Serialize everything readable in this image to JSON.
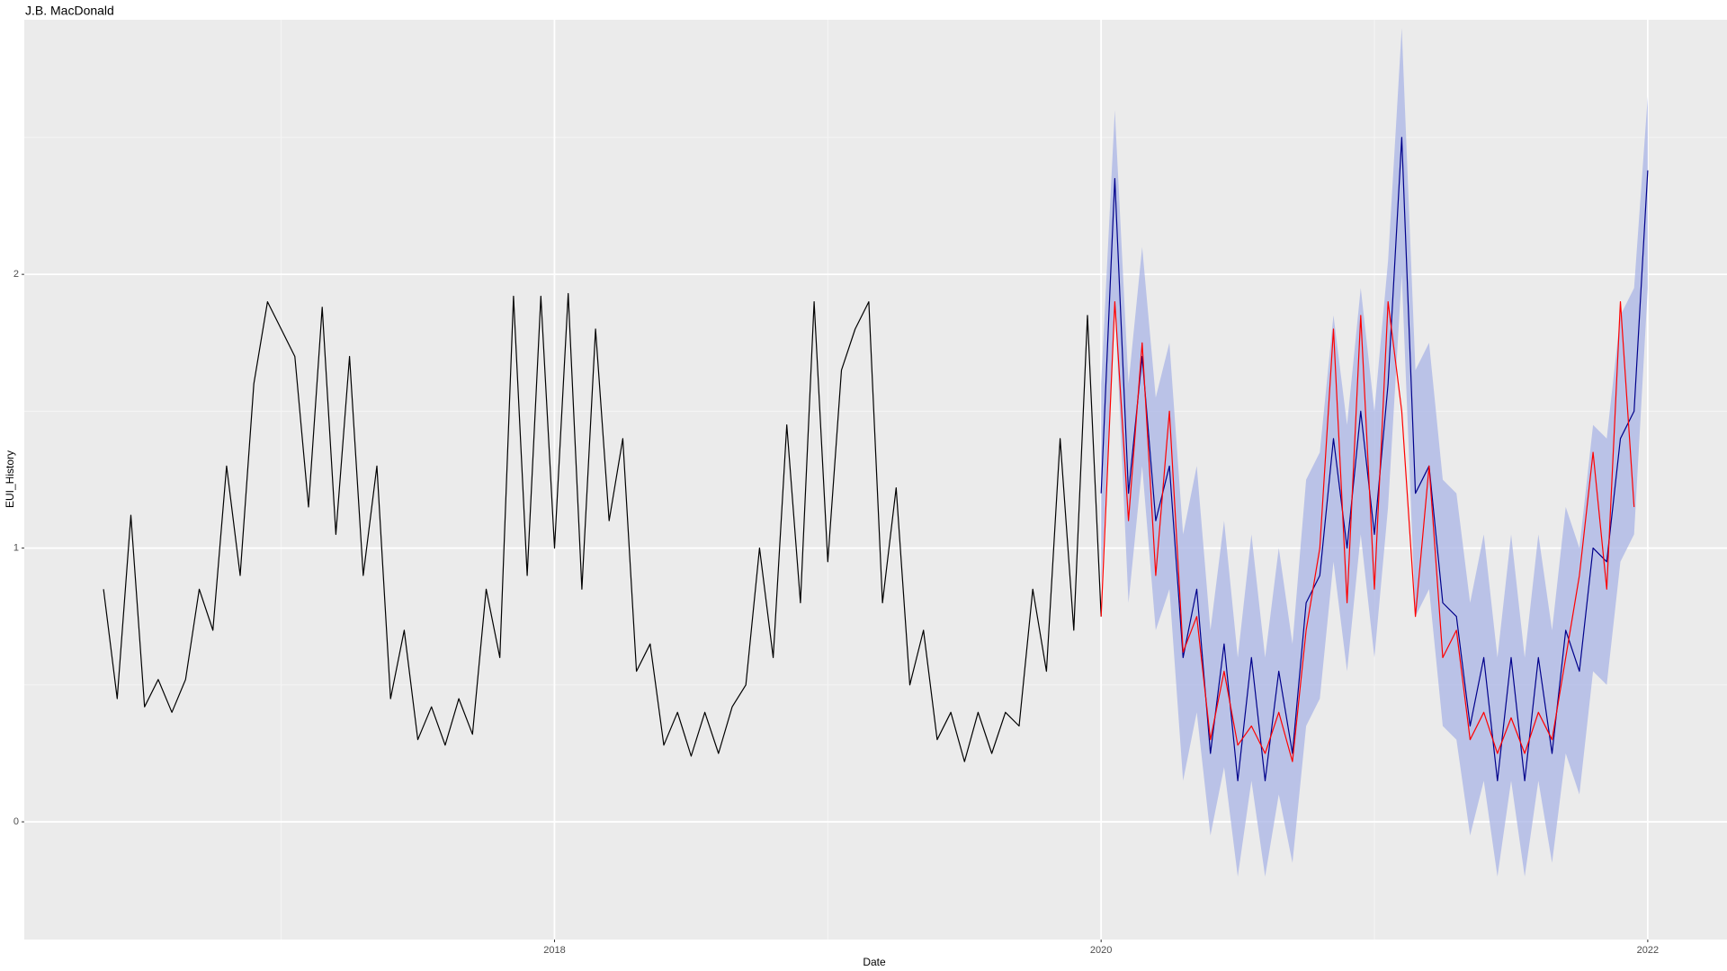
{
  "chart_data": {
    "type": "line",
    "title": "J.B. MacDonald",
    "xlabel": "Date",
    "ylabel": "EUI_History",
    "xlim": [
      2016.06,
      2022.29
    ],
    "ylim": [
      -0.43,
      2.93
    ],
    "xticks": [
      2018,
      2020,
      2022
    ],
    "yticks": [
      0,
      1,
      2
    ],
    "xminor": [
      2017,
      2019,
      2021
    ],
    "yminor": [
      0.5,
      1.5,
      2.5
    ],
    "grid": true,
    "series": [
      {
        "color": "#000000",
        "x": [
          2016.35,
          2016.4,
          2016.45,
          2016.5,
          2016.55,
          2016.6,
          2016.65,
          2016.7,
          2016.75,
          2016.8,
          2016.85,
          2016.9,
          2016.95,
          2017.0,
          2017.05,
          2017.1,
          2017.15,
          2017.2,
          2017.25,
          2017.3,
          2017.35,
          2017.4,
          2017.45,
          2017.5,
          2017.55,
          2017.6,
          2017.65,
          2017.7,
          2017.75,
          2017.8,
          2017.85,
          2017.9,
          2017.95,
          2018.0,
          2018.05,
          2018.1,
          2018.15,
          2018.2,
          2018.25,
          2018.3,
          2018.35,
          2018.4,
          2018.45,
          2018.5,
          2018.55,
          2018.6,
          2018.65,
          2018.7,
          2018.75,
          2018.8,
          2018.85,
          2018.9,
          2018.95,
          2019.0,
          2019.05,
          2019.1,
          2019.15,
          2019.2,
          2019.25,
          2019.3,
          2019.35,
          2019.4,
          2019.45,
          2019.5,
          2019.55,
          2019.6,
          2019.65,
          2019.7,
          2019.75,
          2019.8,
          2019.85,
          2019.9,
          2019.95,
          2020.0
        ],
        "values": [
          0.85,
          0.45,
          1.12,
          0.42,
          0.52,
          0.4,
          0.52,
          0.85,
          0.7,
          1.3,
          0.9,
          1.6,
          1.9,
          1.8,
          1.7,
          1.15,
          1.88,
          1.05,
          1.7,
          0.9,
          1.3,
          0.45,
          0.7,
          0.3,
          0.42,
          0.28,
          0.45,
          0.32,
          0.85,
          0.6,
          1.92,
          0.9,
          1.92,
          1.0,
          1.93,
          0.85,
          1.8,
          1.1,
          1.4,
          0.55,
          0.65,
          0.28,
          0.4,
          0.24,
          0.4,
          0.25,
          0.42,
          0.5,
          1.0,
          0.6,
          1.45,
          0.8,
          1.9,
          0.95,
          1.65,
          1.8,
          1.9,
          0.8,
          1.22,
          0.5,
          0.7,
          0.3,
          0.4,
          0.22,
          0.4,
          0.25,
          0.4,
          0.35,
          0.85,
          0.55,
          1.4,
          0.7,
          1.85,
          0.75
        ]
      },
      {
        "color": "#aab4e6",
        "x": [
          2020.0,
          2020.05,
          2020.1,
          2020.15,
          2020.2,
          2020.25,
          2020.3,
          2020.35,
          2020.4,
          2020.45,
          2020.5,
          2020.55,
          2020.6,
          2020.65,
          2020.7,
          2020.75,
          2020.8,
          2020.85,
          2020.9,
          2020.95,
          2021.0,
          2021.05,
          2021.1,
          2021.15,
          2021.2,
          2021.25,
          2021.3,
          2021.35,
          2021.4,
          2021.45,
          2021.5,
          2021.55,
          2021.6,
          2021.65,
          2021.7,
          2021.75,
          2021.8,
          2021.85,
          2021.9,
          2021.95,
          2022.0
        ],
        "lower": [
          0.85,
          1.9,
          0.8,
          1.3,
          0.7,
          0.85,
          0.15,
          0.4,
          -0.05,
          0.2,
          -0.2,
          0.15,
          -0.2,
          0.1,
          -0.15,
          0.35,
          0.45,
          0.95,
          0.55,
          1.05,
          0.6,
          1.15,
          2.0,
          0.75,
          0.85,
          0.35,
          0.3,
          -0.05,
          0.15,
          -0.2,
          0.15,
          -0.2,
          0.15,
          -0.15,
          0.25,
          0.1,
          0.55,
          0.5,
          0.95,
          1.05,
          1.95
        ],
        "upper": [
          1.6,
          2.6,
          1.6,
          2.1,
          1.55,
          1.75,
          1.05,
          1.3,
          0.7,
          1.1,
          0.6,
          1.05,
          0.6,
          1.0,
          0.65,
          1.25,
          1.35,
          1.85,
          1.45,
          1.95,
          1.5,
          2.05,
          2.9,
          1.65,
          1.75,
          1.25,
          1.2,
          0.8,
          1.05,
          0.6,
          1.05,
          0.6,
          1.05,
          0.7,
          1.15,
          1.0,
          1.45,
          1.4,
          1.85,
          1.95,
          2.65
        ]
      },
      {
        "color": "#00008b",
        "x": [
          2020.0,
          2020.05,
          2020.1,
          2020.15,
          2020.2,
          2020.25,
          2020.3,
          2020.35,
          2020.4,
          2020.45,
          2020.5,
          2020.55,
          2020.6,
          2020.65,
          2020.7,
          2020.75,
          2020.8,
          2020.85,
          2020.9,
          2020.95,
          2021.0,
          2021.05,
          2021.1,
          2021.15,
          2021.2,
          2021.25,
          2021.3,
          2021.35,
          2021.4,
          2021.45,
          2021.5,
          2021.55,
          2021.6,
          2021.65,
          2021.7,
          2021.75,
          2021.8,
          2021.85,
          2021.9,
          2021.95,
          2022.0
        ],
        "values": [
          1.2,
          2.35,
          1.2,
          1.7,
          1.1,
          1.3,
          0.6,
          0.85,
          0.25,
          0.65,
          0.15,
          0.6,
          0.15,
          0.55,
          0.25,
          0.8,
          0.9,
          1.4,
          1.0,
          1.5,
          1.05,
          1.6,
          2.5,
          1.2,
          1.3,
          0.8,
          0.75,
          0.35,
          0.6,
          0.15,
          0.6,
          0.15,
          0.6,
          0.25,
          0.7,
          0.55,
          1.0,
          0.95,
          1.4,
          1.5,
          2.38
        ]
      },
      {
        "color": "#ff0000",
        "x": [
          2020.0,
          2020.05,
          2020.1,
          2020.15,
          2020.2,
          2020.25,
          2020.3,
          2020.35,
          2020.4,
          2020.45,
          2020.5,
          2020.55,
          2020.6,
          2020.65,
          2020.7,
          2020.75,
          2020.8,
          2020.85,
          2020.9,
          2020.95,
          2021.0,
          2021.05,
          2021.1,
          2021.15,
          2021.2,
          2021.25,
          2021.3,
          2021.35,
          2021.4,
          2021.45,
          2021.5,
          2021.55,
          2021.6,
          2021.65,
          2021.7,
          2021.75,
          2021.8,
          2021.85,
          2021.9,
          2021.95,
          2022.0
        ],
        "values": [
          0.75,
          1.9,
          1.1,
          1.75,
          0.9,
          1.5,
          0.62,
          0.75,
          0.3,
          0.55,
          0.28,
          0.35,
          0.25,
          0.4,
          0.22,
          0.7,
          1.0,
          1.8,
          0.8,
          1.85,
          0.85,
          1.9,
          1.5,
          0.75,
          1.3,
          0.6,
          0.7,
          0.3,
          0.4,
          0.25,
          0.38,
          0.25,
          0.4,
          0.3,
          0.6,
          0.9,
          1.35,
          0.85,
          1.9,
          1.15,
          null
        ]
      }
    ]
  }
}
